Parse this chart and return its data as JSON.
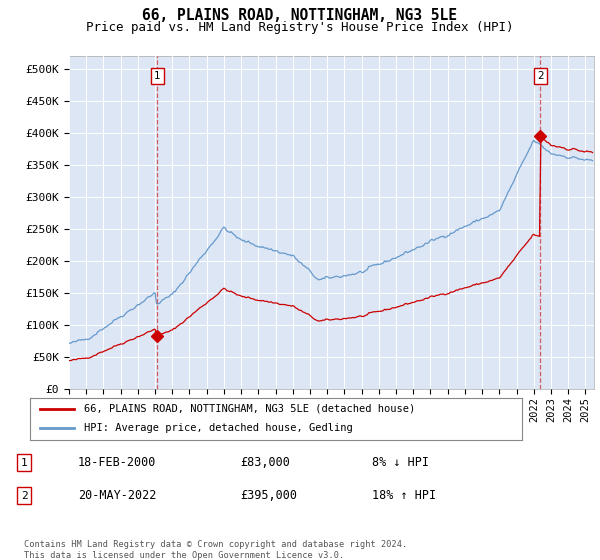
{
  "title": "66, PLAINS ROAD, NOTTINGHAM, NG3 5LE",
  "subtitle": "Price paid vs. HM Land Registry's House Price Index (HPI)",
  "ylabel_ticks": [
    0,
    50000,
    100000,
    150000,
    200000,
    250000,
    300000,
    350000,
    400000,
    450000,
    500000
  ],
  "ylabel_labels": [
    "£0",
    "£50K",
    "£100K",
    "£150K",
    "£200K",
    "£250K",
    "£300K",
    "£350K",
    "£400K",
    "£450K",
    "£500K"
  ],
  "ylim": [
    0,
    520000
  ],
  "xlim_start": 1995.0,
  "xlim_end": 2025.5,
  "fig_bg_color": "#ffffff",
  "plot_bg_color": "#dce6f5",
  "grid_color": "#ffffff",
  "red_line_color": "#cc0000",
  "blue_line_color": "#6699cc",
  "transaction1_x": 2000.12,
  "transaction1_y": 83000,
  "transaction2_x": 2022.38,
  "transaction2_y": 395000,
  "legend_label_red": "66, PLAINS ROAD, NOTTINGHAM, NG3 5LE (detached house)",
  "legend_label_blue": "HPI: Average price, detached house, Gedling",
  "ann1_num": "1",
  "ann1_date": "18-FEB-2000",
  "ann1_price": "£83,000",
  "ann1_hpi": "8% ↓ HPI",
  "ann2_num": "2",
  "ann2_date": "20-MAY-2022",
  "ann2_price": "£395,000",
  "ann2_hpi": "18% ↑ HPI",
  "footer": "Contains HM Land Registry data © Crown copyright and database right 2024.\nThis data is licensed under the Open Government Licence v3.0."
}
